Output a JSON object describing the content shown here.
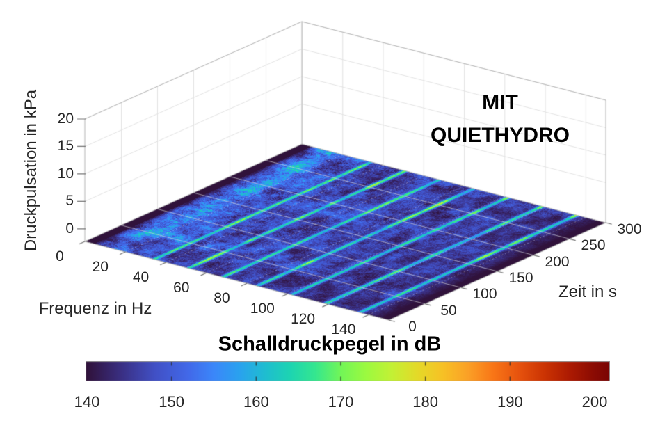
{
  "annotation": {
    "line1": "MIT",
    "line2": "QUIETHYDRO"
  },
  "colorbar": {
    "title": "Schalldruckpegel in dB",
    "ticks": [
      140,
      150,
      160,
      170,
      180,
      190,
      200
    ],
    "min": 140,
    "max": 200,
    "colormap": "turbo",
    "colormap_anchors": [
      [
        140,
        "#30123b"
      ],
      [
        144,
        "#3a2f82"
      ],
      [
        148,
        "#4150c5"
      ],
      [
        152,
        "#4269e9"
      ],
      [
        155,
        "#3b87fa"
      ],
      [
        158,
        "#2aa2ef"
      ],
      [
        161,
        "#1fbdd1"
      ],
      [
        164,
        "#1dd4b2"
      ],
      [
        167,
        "#35e78f"
      ],
      [
        170,
        "#72f658"
      ],
      [
        173,
        "#9cfa40"
      ],
      [
        176,
        "#c3f135"
      ],
      [
        179,
        "#e4da28"
      ],
      [
        182,
        "#f7c225"
      ],
      [
        185,
        "#fba127"
      ],
      [
        188,
        "#f97617"
      ],
      [
        191,
        "#e7530e"
      ],
      [
        194,
        "#cc3403"
      ],
      [
        197,
        "#ad1b02"
      ],
      [
        200,
        "#8a0b03"
      ]
    ]
  },
  "chart_data": {
    "type": "heatmap",
    "view": "3d-surface",
    "title": "",
    "xlabel": "Frequenz in Hz",
    "x_ticks": [
      0,
      20,
      40,
      60,
      80,
      100,
      120,
      140
    ],
    "xlim": [
      0,
      150
    ],
    "ylabel": "Zeit in s",
    "y_ticks": [
      0,
      50,
      100,
      150,
      200,
      250,
      300
    ],
    "ylim": [
      0,
      300
    ],
    "zlabel": "Druckpulsation in kPa",
    "z_ticks": [
      0,
      5,
      10,
      15,
      20
    ],
    "zlim": [
      0,
      20
    ],
    "color_label": "Schalldruckpegel in dB",
    "clim": [
      140,
      200
    ],
    "surface_level_kpa": 0,
    "noise_floor_db": 140,
    "broadband_noise_db": [
      141,
      158
    ],
    "fundamental_band_hz": [
      8,
      20
    ],
    "fundamental_band_center_hz": 14,
    "fundamental_band_peak_db": 172,
    "harmonic_lines_hz": [
      34,
      51,
      68,
      85,
      102,
      119,
      136
    ],
    "harmonic_line_level_db": [
      160,
      176
    ],
    "noise_cutoff_hz": 146,
    "grid": true
  }
}
